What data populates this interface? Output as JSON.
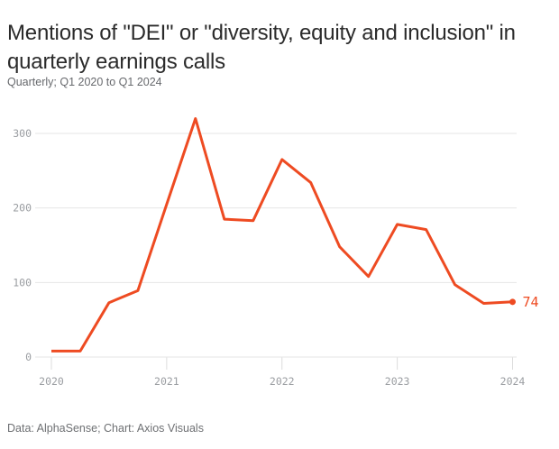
{
  "header": {
    "title_lines": [
      "Mentions of \"DEI\" or \"diversity, equity and inclusion\" in",
      "quarterly earnings calls"
    ],
    "subtitle": "Quarterly; Q1 2020 to Q1 2024"
  },
  "footer": {
    "source": "Data: AlphaSense; Chart: Axios Visuals"
  },
  "chart_data": {
    "type": "line",
    "title": "Mentions of \"DEI\" or \"diversity, equity and inclusion\" in quarterly earnings calls",
    "subtitle": "Quarterly; Q1 2020 to Q1 2024",
    "x": [
      "Q1 2020",
      "Q2 2020",
      "Q3 2020",
      "Q4 2020",
      "Q1 2021",
      "Q2 2021",
      "Q3 2021",
      "Q4 2021",
      "Q1 2022",
      "Q2 2022",
      "Q3 2022",
      "Q4 2022",
      "Q1 2023",
      "Q2 2023",
      "Q3 2023",
      "Q4 2023",
      "Q1 2024"
    ],
    "values": [
      8,
      8,
      73,
      89,
      205,
      320,
      185,
      183,
      265,
      234,
      148,
      108,
      178,
      171,
      97,
      72,
      74
    ],
    "x_year_ticks": [
      "2020",
      "2021",
      "2022",
      "2023",
      "2024"
    ],
    "y_ticks": [
      0,
      100,
      200,
      300
    ],
    "ylim": [
      0,
      335
    ],
    "xlabel": "",
    "ylabel": "",
    "grid": "horizontal",
    "legend": "none",
    "end_point_label": "74",
    "line_color": "#ee4b22",
    "grid_color": "#e6e6e6",
    "tick_color": "#dcdcdc",
    "axis_label_color": "#9a9da1"
  }
}
